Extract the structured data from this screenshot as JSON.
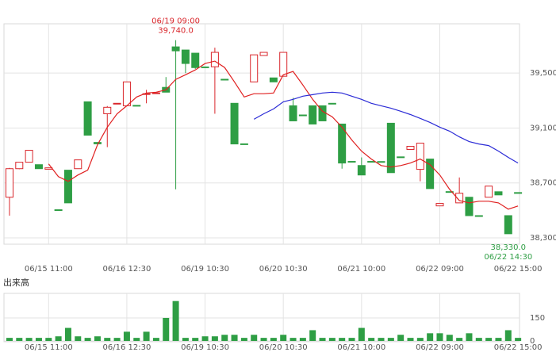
{
  "chart_data": [
    {
      "type": "candlestick",
      "categories": [
        null,
        null,
        null,
        null,
        "06/15 11:00",
        null,
        null,
        null,
        null,
        null,
        null,
        null,
        "06/16 12:30",
        null,
        null,
        null,
        null,
        null,
        null,
        null,
        "06/19 10:30",
        null,
        null,
        null,
        null,
        null,
        null,
        null,
        "06/20 10:30",
        null,
        null,
        null,
        null,
        null,
        null,
        null,
        "06/21 10:00",
        null,
        null,
        null,
        null,
        null,
        null,
        null,
        "06/22 09:00",
        null,
        null,
        null,
        null,
        null,
        null,
        null,
        "06/22 15:00"
      ],
      "open": [
        38596,
        38804,
        38851,
        38833,
        38800,
        38505,
        38793,
        38804,
        39291,
        38995,
        39204,
        39275,
        39262,
        39265,
        39345,
        39352,
        39396,
        39691,
        39668,
        39645,
        39545,
        39546,
        39455,
        39280,
        38985,
        39436,
        39628,
        39465,
        39477,
        39262,
        39195,
        39262,
        39262,
        39280,
        39129,
        38857,
        38827,
        38857,
        38856,
        39135,
        38890,
        38944,
        38799,
        38874,
        38533,
        38637,
        38555,
        38596,
        38462,
        38596,
        38636,
        38462,
        38630
      ],
      "high": [
        38810,
        38851,
        38938,
        38833,
        38810,
        38505,
        38793,
        38868,
        39291,
        38995,
        39260,
        39280,
        39436,
        39265,
        39378,
        39356,
        39471,
        39740,
        39668,
        39645,
        39545,
        39685,
        39455,
        39280,
        38985,
        39633,
        39651,
        39465,
        39651,
        39320,
        39195,
        39262,
        39262,
        39280,
        39129,
        38857,
        38886,
        38857,
        38856,
        39135,
        38890,
        38967,
        38990,
        38874,
        38551,
        38637,
        38740,
        38596,
        38462,
        38677,
        38636,
        38462,
        38630
      ],
      "low": [
        38462,
        38800,
        38851,
        38804,
        38800,
        38500,
        38555,
        38804,
        39048,
        38985,
        38961,
        39275,
        39262,
        39262,
        39280,
        39352,
        39361,
        38654,
        39500,
        39530,
        39540,
        39204,
        39453,
        38984,
        38984,
        39436,
        39628,
        39436,
        39477,
        39152,
        39190,
        39129,
        39152,
        39278,
        38804,
        38855,
        38758,
        38855,
        38854,
        38775,
        38888,
        38944,
        38712,
        38659,
        38533,
        38635,
        38555,
        38462,
        38460,
        38596,
        38613,
        38330,
        38628
      ],
      "close": [
        38804,
        38851,
        38938,
        38804,
        38810,
        38500,
        38555,
        38868,
        39048,
        38985,
        39251,
        39280,
        39436,
        39262,
        39350,
        39356,
        39361,
        39662,
        39570,
        39540,
        39540,
        39651,
        39453,
        38984,
        38984,
        39633,
        39651,
        39436,
        39651,
        39152,
        39190,
        39129,
        39152,
        39278,
        38845,
        38855,
        38758,
        38855,
        38854,
        38775,
        38888,
        38967,
        38990,
        38659,
        38551,
        38635,
        38625,
        38462,
        38460,
        38677,
        38613,
        38330,
        38628
      ],
      "up_color": "#d9262b",
      "down_color": "#2e9e44",
      "lines": [
        {
          "color": "#e02020",
          "values": [
            null,
            null,
            null,
            null,
            38839,
            38746,
            38712,
            38758,
            38793,
            38978,
            39106,
            39204,
            39262,
            39326,
            39355,
            39361,
            39378,
            39454,
            39488,
            39523,
            39570,
            39587,
            39541,
            39436,
            39326,
            39350,
            39350,
            39355,
            39488,
            39512,
            39413,
            39309,
            39222,
            39181,
            39106,
            39013,
            38932,
            38874,
            38827,
            38816,
            38827,
            38845,
            38874,
            38833,
            38758,
            38654,
            38572,
            38555,
            38567,
            38567,
            38555,
            38509,
            38532
          ]
        },
        {
          "color": "#2b2bd6",
          "values": [
            null,
            null,
            null,
            null,
            null,
            null,
            null,
            null,
            null,
            null,
            null,
            null,
            null,
            null,
            null,
            null,
            null,
            null,
            null,
            null,
            null,
            null,
            null,
            null,
            null,
            39164,
            39204,
            39239,
            39291,
            39309,
            39332,
            39343,
            39355,
            39361,
            39355,
            39332,
            39309,
            39280,
            39262,
            39245,
            39222,
            39198,
            39170,
            39141,
            39106,
            39077,
            39036,
            39001,
            38984,
            38972,
            38932,
            38886,
            38845
          ]
        }
      ],
      "ylim": [
        38254,
        39859
      ],
      "yticks": [
        {
          "value": 38300,
          "label": "38,300"
        },
        {
          "value": 38700,
          "label": "38,700"
        },
        {
          "value": 39100,
          "label": "39,100"
        },
        {
          "value": 39500,
          "label": "39,500"
        }
      ],
      "grid": true,
      "annotations": [
        {
          "label": "06/19 09:00",
          "index": 17,
          "value": 39740,
          "value_label": "39,740.0",
          "color": "#d9262b"
        },
        {
          "label": "06/22 14:30",
          "index": 51,
          "value": 38330,
          "value_label": "38,330.0",
          "color": "#2e9e44"
        }
      ]
    },
    {
      "type": "bar",
      "title": "出来高",
      "categories": [
        null,
        null,
        null,
        null,
        "06/15 11:00",
        null,
        null,
        null,
        null,
        null,
        null,
        null,
        "06/16 12:30",
        null,
        null,
        null,
        null,
        null,
        null,
        null,
        "06/19 10:30",
        null,
        null,
        null,
        null,
        null,
        null,
        null,
        "06/20 10:30",
        null,
        null,
        null,
        null,
        null,
        null,
        null,
        "06/21 10:00",
        null,
        null,
        null,
        null,
        null,
        null,
        null,
        "06/22 09:00",
        null,
        null,
        null,
        null,
        null,
        null,
        null,
        "06/22 15:00"
      ],
      "values": [
        20,
        20,
        20,
        20,
        20,
        30,
        85,
        30,
        20,
        30,
        20,
        20,
        60,
        20,
        60,
        20,
        150,
        260,
        20,
        20,
        30,
        30,
        40,
        40,
        20,
        40,
        20,
        20,
        40,
        20,
        20,
        70,
        20,
        20,
        20,
        20,
        85,
        20,
        20,
        20,
        40,
        20,
        20,
        50,
        50,
        40,
        20,
        50,
        20,
        20,
        20,
        70,
        20
      ],
      "color": "#2e9e44",
      "ylim": [
        0,
        310
      ],
      "yticks": [
        0,
        150
      ],
      "grid": true
    }
  ]
}
